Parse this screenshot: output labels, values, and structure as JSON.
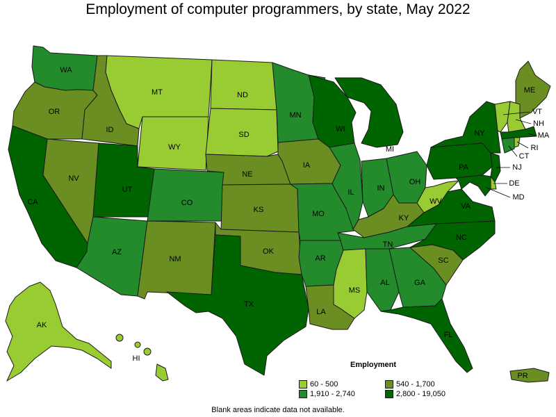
{
  "title": "Employment of computer programmers, by state, May 2022",
  "legend": {
    "title": "Employment",
    "classes": [
      {
        "label": "60 - 500",
        "color": "#99cc33"
      },
      {
        "label": "540 - 1,700",
        "color": "#6b8e23"
      },
      {
        "label": "1,910 - 2,740",
        "color": "#238b2b"
      },
      {
        "label": "2,800 - 19,050",
        "color": "#006400"
      }
    ]
  },
  "footnote": "Blank areas indicate data not available.",
  "states": [
    {
      "abbr": "WA",
      "class": 2
    },
    {
      "abbr": "OR",
      "class": 1
    },
    {
      "abbr": "CA",
      "class": 3
    },
    {
      "abbr": "ID",
      "class": 1
    },
    {
      "abbr": "NV",
      "class": 1
    },
    {
      "abbr": "MT",
      "class": 0
    },
    {
      "abbr": "WY",
      "class": 0
    },
    {
      "abbr": "UT",
      "class": 3
    },
    {
      "abbr": "AZ",
      "class": 2
    },
    {
      "abbr": "CO",
      "class": 2
    },
    {
      "abbr": "NM",
      "class": 1
    },
    {
      "abbr": "ND",
      "class": 0
    },
    {
      "abbr": "SD",
      "class": 0
    },
    {
      "abbr": "NE",
      "class": 1
    },
    {
      "abbr": "KS",
      "class": 1
    },
    {
      "abbr": "OK",
      "class": 1
    },
    {
      "abbr": "TX",
      "class": 3
    },
    {
      "abbr": "MN",
      "class": 2
    },
    {
      "abbr": "IA",
      "class": 1
    },
    {
      "abbr": "MO",
      "class": 2
    },
    {
      "abbr": "AR",
      "class": 2
    },
    {
      "abbr": "LA",
      "class": 1
    },
    {
      "abbr": "WI",
      "class": 3
    },
    {
      "abbr": "IL",
      "class": 2
    },
    {
      "abbr": "MI",
      "class": 3
    },
    {
      "abbr": "IN",
      "class": 2
    },
    {
      "abbr": "OH",
      "class": 2
    },
    {
      "abbr": "KY",
      "class": 1
    },
    {
      "abbr": "TN",
      "class": 2
    },
    {
      "abbr": "MS",
      "class": 0
    },
    {
      "abbr": "AL",
      "class": 2
    },
    {
      "abbr": "GA",
      "class": 2
    },
    {
      "abbr": "FL",
      "class": 3
    },
    {
      "abbr": "SC",
      "class": 1
    },
    {
      "abbr": "NC",
      "class": 3
    },
    {
      "abbr": "VA",
      "class": 3
    },
    {
      "abbr": "WV",
      "class": 0
    },
    {
      "abbr": "PA",
      "class": 3
    },
    {
      "abbr": "NY",
      "class": 3
    },
    {
      "abbr": "ME",
      "class": 1
    },
    {
      "abbr": "AK",
      "class": 0
    },
    {
      "abbr": "HI",
      "class": 0
    },
    {
      "abbr": "PR",
      "class": 1
    },
    {
      "abbr": "VT",
      "class": 0
    },
    {
      "abbr": "NH",
      "class": 0
    },
    {
      "abbr": "MA",
      "class": 3
    },
    {
      "abbr": "RI",
      "class": 0
    },
    {
      "abbr": "CT",
      "class": 2
    },
    {
      "abbr": "NJ",
      "class": 3
    },
    {
      "abbr": "DE",
      "class": 0
    },
    {
      "abbr": "MD",
      "class": 3
    }
  ]
}
